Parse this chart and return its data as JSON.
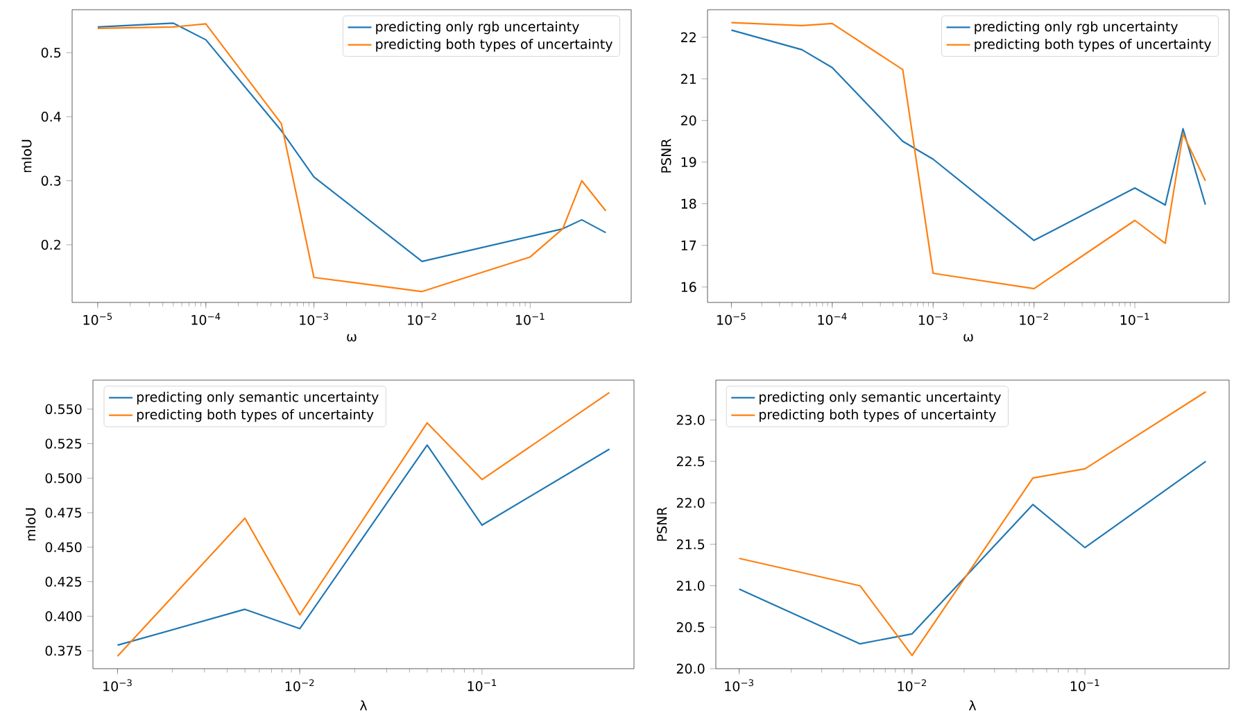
{
  "chart_data": [
    {
      "type": "line",
      "xlabel": "ω",
      "ylabel": "mIoU",
      "log": "x",
      "legend": "top right",
      "xlim": [
        5.8e-06,
        0.86
      ],
      "ylim": [
        0.11,
        0.567
      ],
      "xticks": [
        {
          "value": 1e-05,
          "label": "10$^{−5}$"
        },
        {
          "value": 0.0001,
          "label": "10$^{−4}$"
        },
        {
          "value": 0.001,
          "label": "10$^{−3}$"
        },
        {
          "value": 0.01,
          "label": "10$^{−2}$"
        },
        {
          "value": 0.1,
          "label": "10$^{−1}$"
        }
      ],
      "yticks": [
        {
          "value": 0.2,
          "label": "0.2"
        },
        {
          "value": 0.3,
          "label": "0.3"
        },
        {
          "value": 0.4,
          "label": "0.4"
        },
        {
          "value": 0.5,
          "label": "0.5"
        }
      ],
      "x": [
        1e-05,
        5e-05,
        0.0001,
        0.0005,
        0.001,
        0.01,
        0.1,
        0.2,
        0.3,
        0.5
      ],
      "series": [
        {
          "name": "predicting only rgb uncertainty",
          "color": "#1f77b4",
          "values": [
            0.54,
            0.546,
            0.52,
            0.378,
            0.306,
            0.174,
            0.213,
            0.225,
            0.239,
            0.219
          ]
        },
        {
          "name": "predicting both types of uncertainty",
          "color": "#ff7f0e",
          "values": [
            0.538,
            0.54,
            0.545,
            0.389,
            0.149,
            0.127,
            0.181,
            0.225,
            0.3,
            0.253
          ]
        }
      ]
    },
    {
      "type": "line",
      "xlabel": "ω",
      "ylabel": "PSNR",
      "log": "x",
      "legend": "top right",
      "xlim": [
        5.8e-06,
        0.86
      ],
      "ylim": [
        15.63,
        22.66
      ],
      "xticks": [
        {
          "value": 1e-05,
          "label": "10$^{−5}$"
        },
        {
          "value": 0.0001,
          "label": "10$^{−4}$"
        },
        {
          "value": 0.001,
          "label": "10$^{−3}$"
        },
        {
          "value": 0.01,
          "label": "10$^{−2}$"
        },
        {
          "value": 0.1,
          "label": "10$^{−1}$"
        }
      ],
      "yticks": [
        {
          "value": 16,
          "label": "16"
        },
        {
          "value": 17,
          "label": "17"
        },
        {
          "value": 18,
          "label": "18"
        },
        {
          "value": 19,
          "label": "19"
        },
        {
          "value": 20,
          "label": "20"
        },
        {
          "value": 21,
          "label": "21"
        },
        {
          "value": 22,
          "label": "22"
        }
      ],
      "x": [
        1e-05,
        5e-05,
        0.0001,
        0.0005,
        0.001,
        0.01,
        0.1,
        0.2,
        0.3,
        0.5
      ],
      "series": [
        {
          "name": "predicting only rgb uncertainty",
          "color": "#1f77b4",
          "values": [
            22.17,
            21.7,
            21.27,
            19.5,
            19.07,
            17.12,
            18.38,
            17.97,
            19.8,
            17.98
          ]
        },
        {
          "name": "predicting both types of uncertainty",
          "color": "#ff7f0e",
          "values": [
            22.35,
            22.28,
            22.33,
            21.22,
            16.33,
            15.96,
            17.6,
            17.05,
            19.68,
            18.55
          ]
        }
      ]
    },
    {
      "type": "line",
      "xlabel": "λ",
      "ylabel": "mIoU",
      "log": "x",
      "legend": "top left",
      "xlim": [
        0.000733,
        0.682
      ],
      "ylim": [
        0.362,
        0.571
      ],
      "xticks": [
        {
          "value": 0.001,
          "label": "10$^{−3}$"
        },
        {
          "value": 0.01,
          "label": "10$^{−2}$"
        },
        {
          "value": 0.1,
          "label": "10$^{−1}$"
        }
      ],
      "yticks": [
        {
          "value": 0.375,
          "label": "0.375"
        },
        {
          "value": 0.4,
          "label": "0.400"
        },
        {
          "value": 0.425,
          "label": "0.425"
        },
        {
          "value": 0.45,
          "label": "0.450"
        },
        {
          "value": 0.475,
          "label": "0.475"
        },
        {
          "value": 0.5,
          "label": "0.500"
        },
        {
          "value": 0.525,
          "label": "0.525"
        },
        {
          "value": 0.55,
          "label": "0.550"
        }
      ],
      "x": [
        0.001,
        0.005,
        0.01,
        0.05,
        0.1,
        0.5
      ],
      "series": [
        {
          "name": "predicting only semantic uncertainty",
          "color": "#1f77b4",
          "values": [
            0.379,
            0.405,
            0.391,
            0.524,
            0.466,
            0.521
          ]
        },
        {
          "name": "predicting both types of uncertainty",
          "color": "#ff7f0e",
          "values": [
            0.371,
            0.471,
            0.401,
            0.54,
            0.499,
            0.562
          ]
        }
      ]
    },
    {
      "type": "line",
      "xlabel": "λ",
      "ylabel": "PSNR",
      "log": "x",
      "legend": "top left",
      "xlim": [
        0.000733,
        0.682
      ],
      "ylim": [
        20.0,
        23.48
      ],
      "xticks": [
        {
          "value": 0.001,
          "label": "10$^{−3}$"
        },
        {
          "value": 0.01,
          "label": "10$^{−2}$"
        },
        {
          "value": 0.1,
          "label": "10$^{−1}$"
        }
      ],
      "yticks": [
        {
          "value": 20.0,
          "label": "20.0"
        },
        {
          "value": 20.5,
          "label": "20.5"
        },
        {
          "value": 21.0,
          "label": "21.0"
        },
        {
          "value": 21.5,
          "label": "21.5"
        },
        {
          "value": 22.0,
          "label": "22.0"
        },
        {
          "value": 22.5,
          "label": "22.5"
        },
        {
          "value": 23.0,
          "label": "23.0"
        }
      ],
      "x": [
        0.001,
        0.005,
        0.01,
        0.05,
        0.1,
        0.5
      ],
      "series": [
        {
          "name": "predicting only semantic uncertainty",
          "color": "#1f77b4",
          "values": [
            20.96,
            20.3,
            20.42,
            21.98,
            21.46,
            22.5
          ]
        },
        {
          "name": "predicting both types of uncertainty",
          "color": "#ff7f0e",
          "values": [
            21.33,
            21.0,
            20.16,
            22.3,
            22.41,
            23.34
          ]
        }
      ]
    }
  ]
}
